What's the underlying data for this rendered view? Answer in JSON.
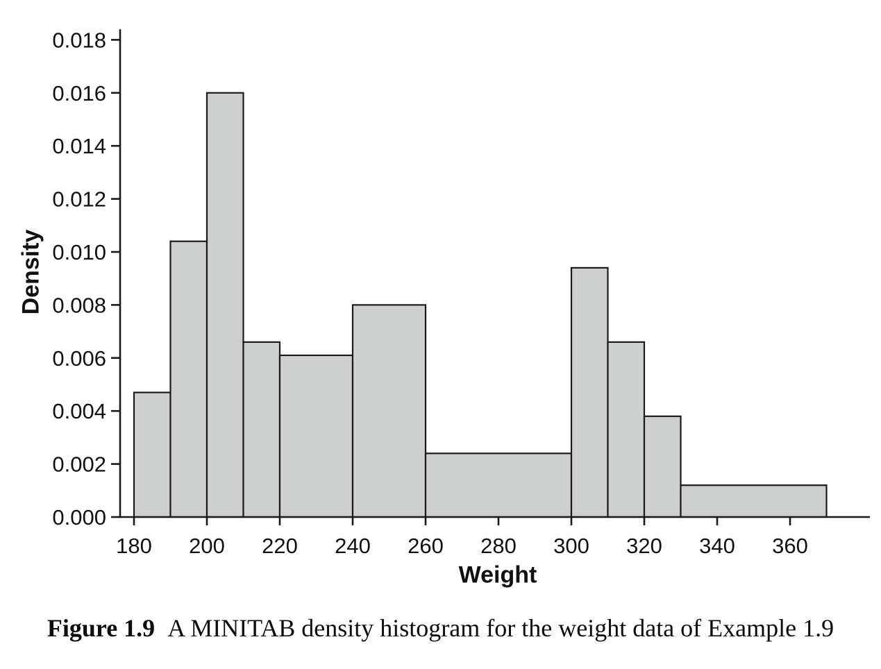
{
  "figure": {
    "caption_label": "Figure 1.9",
    "caption_text": "A MINITAB density histogram for the weight data of Example 1.9"
  },
  "chart_data": {
    "type": "histogram",
    "title": "",
    "xlabel": "Weight",
    "ylabel": "Density",
    "bin_edges": [
      180,
      190,
      200,
      210,
      220,
      240,
      260,
      300,
      310,
      320,
      330,
      370
    ],
    "densities": [
      0.0047,
      0.0104,
      0.016,
      0.0066,
      0.0061,
      0.008,
      0.0024,
      0.0094,
      0.0066,
      0.0038,
      0.0012
    ],
    "x_ticks": [
      180,
      200,
      220,
      240,
      260,
      280,
      300,
      320,
      340,
      360
    ],
    "y_ticks": [
      0.0,
      0.002,
      0.004,
      0.006,
      0.008,
      0.01,
      0.012,
      0.014,
      0.016,
      0.018
    ],
    "y_tick_decimals": 3,
    "xlim": [
      176.2,
      381.9
    ],
    "ylim": [
      0,
      0.0184
    ],
    "grid": false,
    "legend": "none",
    "bar_fill": "#ced0cf",
    "bar_stroke": "#1a1a1a",
    "axis_color": "#1a1a1a"
  }
}
